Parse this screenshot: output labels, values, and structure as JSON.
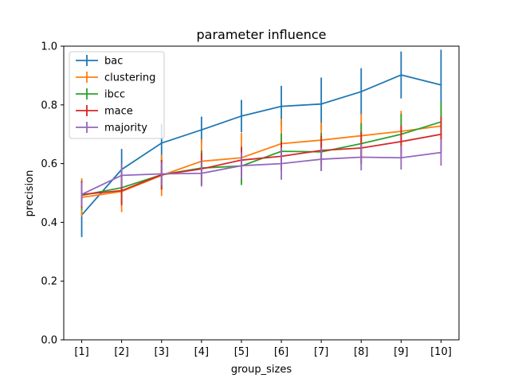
{
  "chart_data": {
    "type": "line",
    "title": "parameter influence",
    "xlabel": "group_sizes",
    "ylabel": "precision",
    "categories": [
      "[1]",
      "[2]",
      "[3]",
      "[4]",
      "[5]",
      "[6]",
      "[7]",
      "[8]",
      "[9]",
      "[10]"
    ],
    "ylim": [
      0.0,
      1.0
    ],
    "yticks": [
      "0.0",
      "0.2",
      "0.4",
      "0.6",
      "0.8",
      "1.0"
    ],
    "grid": false,
    "legend_position": "top-left",
    "series": [
      {
        "name": "bac",
        "color": "#1f77b4",
        "values": [
          0.425,
          0.58,
          0.67,
          0.715,
          0.762,
          0.795,
          0.803,
          0.845,
          0.902,
          0.868
        ],
        "errors": [
          0.075,
          0.07,
          0.065,
          0.045,
          0.055,
          0.07,
          0.09,
          0.08,
          0.08,
          0.12
        ]
      },
      {
        "name": "clustering",
        "color": "#ff7f0e",
        "values": [
          0.485,
          0.505,
          0.56,
          0.608,
          0.62,
          0.668,
          0.68,
          0.695,
          0.71,
          0.728
        ],
        "errors": [
          0.065,
          0.07,
          0.07,
          0.075,
          0.085,
          0.085,
          0.06,
          0.075,
          0.07,
          0.07
        ]
      },
      {
        "name": "ibcc",
        "color": "#2ca02c",
        "values": [
          0.492,
          0.518,
          0.562,
          0.585,
          0.592,
          0.642,
          0.64,
          0.668,
          0.7,
          0.742
        ],
        "errors": [
          0.05,
          0.055,
          0.05,
          0.06,
          0.065,
          0.06,
          0.065,
          0.07,
          0.07,
          0.07
        ]
      },
      {
        "name": "mace",
        "color": "#d62728",
        "values": [
          0.495,
          0.508,
          0.562,
          0.582,
          0.612,
          0.625,
          0.645,
          0.653,
          0.675,
          0.7
        ],
        "errors": [
          0.045,
          0.05,
          0.05,
          0.055,
          0.045,
          0.05,
          0.05,
          0.055,
          0.055,
          0.06
        ]
      },
      {
        "name": "majority",
        "color": "#9467bd",
        "values": [
          0.495,
          0.56,
          0.565,
          0.567,
          0.593,
          0.6,
          0.615,
          0.622,
          0.62,
          0.638
        ],
        "errors": [
          0.04,
          0.04,
          0.04,
          0.045,
          0.045,
          0.055,
          0.04,
          0.045,
          0.04,
          0.045
        ]
      }
    ]
  }
}
